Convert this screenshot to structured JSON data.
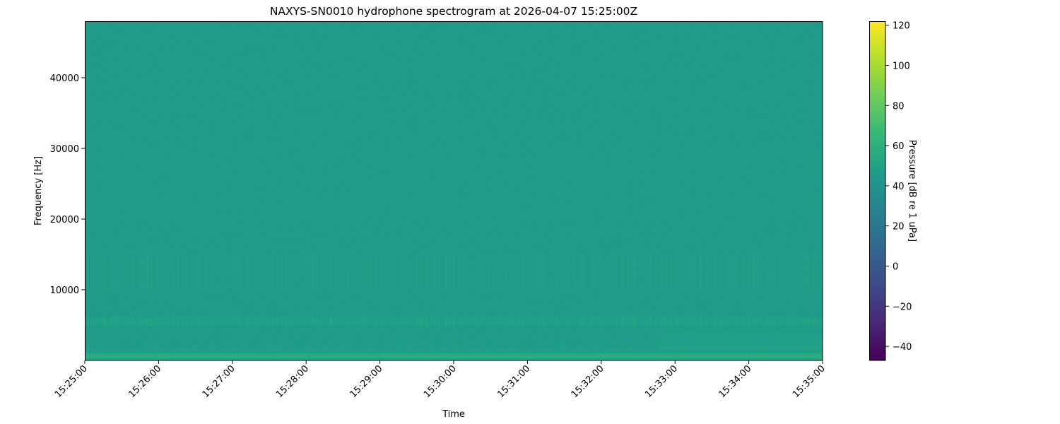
{
  "chart_data": {
    "type": "heatmap",
    "title": "NAXYS-SN0010 hydrophone spectrogram at 2026-04-07 15:25:00Z",
    "xlabel": "Time",
    "ylabel": "Frequency [Hz]",
    "x_ticks": [
      "15:25:00",
      "15:26:00",
      "15:27:00",
      "15:28:00",
      "15:29:00",
      "15:30:00",
      "15:31:00",
      "15:32:00",
      "15:33:00",
      "15:34:00",
      "15:35:00"
    ],
    "xlim": [
      "15:25:00",
      "15:35:00"
    ],
    "y_ticks": [
      10000,
      20000,
      30000,
      40000
    ],
    "ylim": [
      0,
      48000
    ],
    "colorbar": {
      "label": "Pressure [dB re 1 uPa]",
      "colormap": "viridis",
      "ticks": [
        -40,
        -20,
        0,
        20,
        40,
        60,
        80,
        100,
        120
      ],
      "range": [
        -47,
        122
      ]
    },
    "levels_db": {
      "background": 45,
      "band_5500Hz": 52,
      "band_10000_15000Hz": 49,
      "below_1000Hz": 56,
      "transient_15:30:00": 50
    },
    "grid": false
  }
}
